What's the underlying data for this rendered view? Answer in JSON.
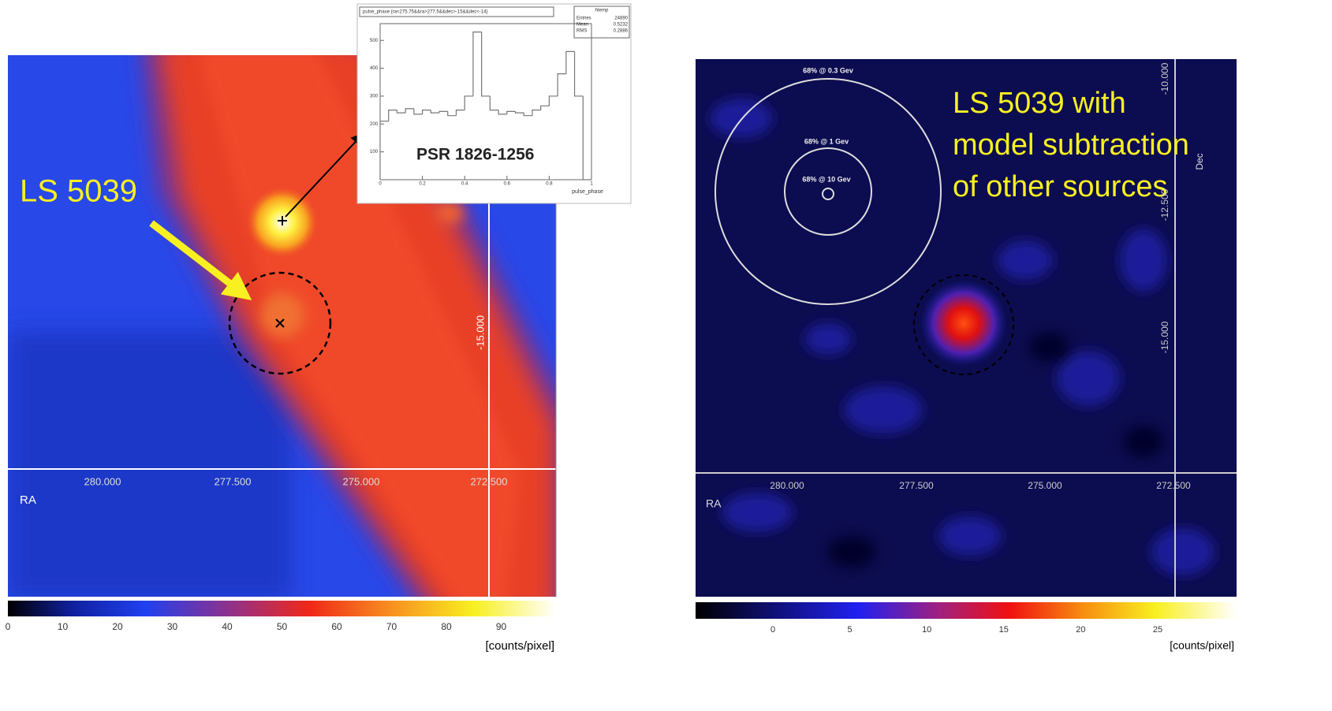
{
  "left_panel": {
    "label": "LS 5039",
    "ra_ticks": [
      "280.000",
      "277.500",
      "275.000",
      "272.500"
    ],
    "ra_label": "RA",
    "dec_tick": "-15.000",
    "colorbar_ticks": [
      "0",
      "10",
      "20",
      "30",
      "40",
      "50",
      "60",
      "70",
      "80",
      "90"
    ],
    "colorbar_unit": "[counts/pixel]"
  },
  "inset": {
    "type": "histogram",
    "title": "pulse_phase {ra<275.75&&ra>277.5&&dec>-15&&dec<-14}",
    "stats": {
      "name": "htemp",
      "rows": [
        [
          "Entries",
          "24890"
        ],
        [
          "Mean",
          "0.5232"
        ],
        [
          "RMS",
          "0.2886"
        ]
      ]
    },
    "bins": [
      0,
      0.04,
      0.08,
      0.12,
      0.16,
      0.2,
      0.24,
      0.28,
      0.32,
      0.36,
      0.4,
      0.44,
      0.48,
      0.52,
      0.56,
      0.6,
      0.64,
      0.68,
      0.72,
      0.76,
      0.8,
      0.84,
      0.88,
      0.92,
      0.96,
      1
    ],
    "counts": [
      210,
      250,
      240,
      255,
      235,
      250,
      240,
      245,
      230,
      250,
      300,
      530,
      300,
      250,
      235,
      245,
      240,
      230,
      250,
      265,
      300,
      380,
      460,
      300,
      0
    ],
    "xlim": [
      0,
      1
    ],
    "ylim": [
      0,
      560
    ],
    "xticks": [
      0,
      0.2,
      0.4,
      0.6,
      0.8,
      1
    ],
    "yticks": [
      100,
      200,
      300,
      400,
      500
    ],
    "x_label": "pulse_phase",
    "source": "PSR 1826-1256"
  },
  "right_panel": {
    "circles": [
      "68% @ 0.3 Gev",
      "68% @ 1 Gev",
      "68% @ 10 Gev"
    ],
    "caption_lines": [
      "LS 5039 with",
      "model subtraction",
      "of other sources"
    ],
    "ra_ticks": [
      "280.000",
      "277.500",
      "275.000",
      "272.500"
    ],
    "ra_label": "RA",
    "dec_ticks": [
      "-10.000",
      "-12.500",
      "-15.000"
    ],
    "dec_label": "Dec",
    "colorbar_ticks": [
      "0",
      "5",
      "10",
      "15",
      "20",
      "25"
    ],
    "colorbar_unit": "[counts/pixel]"
  }
}
